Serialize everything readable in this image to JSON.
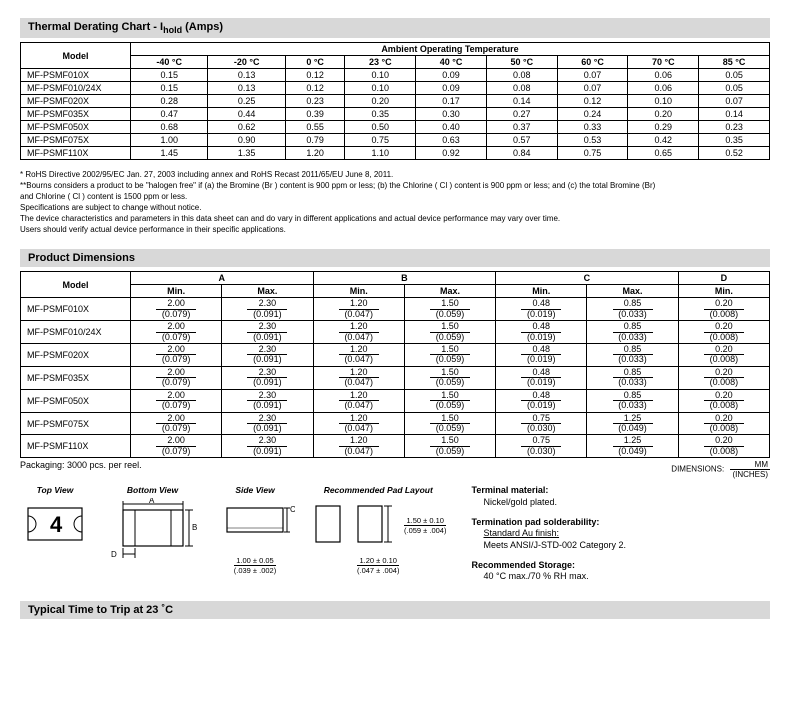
{
  "thermal": {
    "title_prefix": "Thermal Derating Chart - I",
    "title_sub": "hold",
    "title_suffix": " (Amps)",
    "super_header": "Ambient Operating Temperature",
    "model_header": "Model",
    "temps": [
      "-40 °C",
      "-20 °C",
      "0 °C",
      "23 °C",
      "40 °C",
      "50 °C",
      "60 °C",
      "70 °C",
      "85 °C"
    ],
    "rows": [
      {
        "model": "MF-PSMF010X",
        "v": [
          "0.15",
          "0.13",
          "0.12",
          "0.10",
          "0.09",
          "0.08",
          "0.07",
          "0.06",
          "0.05"
        ]
      },
      {
        "model": "MF-PSMF010/24X",
        "v": [
          "0.15",
          "0.13",
          "0.12",
          "0.10",
          "0.09",
          "0.08",
          "0.07",
          "0.06",
          "0.05"
        ]
      },
      {
        "model": "MF-PSMF020X",
        "v": [
          "0.28",
          "0.25",
          "0.23",
          "0.20",
          "0.17",
          "0.14",
          "0.12",
          "0.10",
          "0.07"
        ]
      },
      {
        "model": "MF-PSMF035X",
        "v": [
          "0.47",
          "0.44",
          "0.39",
          "0.35",
          "0.30",
          "0.27",
          "0.24",
          "0.20",
          "0.14"
        ]
      },
      {
        "model": "MF-PSMF050X",
        "v": [
          "0.68",
          "0.62",
          "0.55",
          "0.50",
          "0.40",
          "0.37",
          "0.33",
          "0.29",
          "0.23"
        ]
      },
      {
        "model": "MF-PSMF075X",
        "v": [
          "1.00",
          "0.90",
          "0.79",
          "0.75",
          "0.63",
          "0.57",
          "0.53",
          "0.42",
          "0.35"
        ]
      },
      {
        "model": "MF-PSMF110X",
        "v": [
          "1.45",
          "1.35",
          "1.20",
          "1.10",
          "0.92",
          "0.84",
          "0.75",
          "0.65",
          "0.52"
        ]
      }
    ]
  },
  "footnotes": {
    "l1": "*  RoHS Directive 2002/95/EC Jan. 27, 2003 including annex and RoHS Recast 2011/65/EU June 8, 2011.",
    "l2": "**Bourns considers a product to be \"halogen free\" if (a) the Bromine (Br ) content is 900 ppm or less; (b) the Chlorine ( Cl ) content is 900 ppm or less; and (c) the total Bromine (Br)",
    "l2b": "   and Chlorine ( Cl ) content is 1500 ppm or less.",
    "l3": "Specifications are subject to change without notice.",
    "l4": "The device characteristics and parameters in this data sheet can and do vary in different applications and actual device performance may vary over time.",
    "l5": "Users should verify actual device performance in their specific applications."
  },
  "dims": {
    "title": "Product Dimensions",
    "model_header": "Model",
    "groups": [
      "A",
      "B",
      "C",
      "D"
    ],
    "sub": {
      "min": "Min.",
      "max": "Max."
    },
    "rows": [
      {
        "model": "MF-PSMF010X",
        "a": [
          "2.00",
          "(0.079)",
          "2.30",
          "(0.091)"
        ],
        "b": [
          "1.20",
          "(0.047)",
          "1.50",
          "(0.059)"
        ],
        "c": [
          "0.48",
          "(0.019)",
          "0.85",
          "(0.033)"
        ],
        "d": [
          "0.20",
          "(0.008)"
        ]
      },
      {
        "model": "MF-PSMF010/24X",
        "a": [
          "2.00",
          "(0.079)",
          "2.30",
          "(0.091)"
        ],
        "b": [
          "1.20",
          "(0.047)",
          "1.50",
          "(0.059)"
        ],
        "c": [
          "0.48",
          "(0.019)",
          "0.85",
          "(0.033)"
        ],
        "d": [
          "0.20",
          "(0.008)"
        ]
      },
      {
        "model": "MF-PSMF020X",
        "a": [
          "2.00",
          "(0.079)",
          "2.30",
          "(0.091)"
        ],
        "b": [
          "1.20",
          "(0.047)",
          "1.50",
          "(0.059)"
        ],
        "c": [
          "0.48",
          "(0.019)",
          "0.85",
          "(0.033)"
        ],
        "d": [
          "0.20",
          "(0.008)"
        ]
      },
      {
        "model": "MF-PSMF035X",
        "a": [
          "2.00",
          "(0.079)",
          "2.30",
          "(0.091)"
        ],
        "b": [
          "1.20",
          "(0.047)",
          "1.50",
          "(0.059)"
        ],
        "c": [
          "0.48",
          "(0.019)",
          "0.85",
          "(0.033)"
        ],
        "d": [
          "0.20",
          "(0.008)"
        ]
      },
      {
        "model": "MF-PSMF050X",
        "a": [
          "2.00",
          "(0.079)",
          "2.30",
          "(0.091)"
        ],
        "b": [
          "1.20",
          "(0.047)",
          "1.50",
          "(0.059)"
        ],
        "c": [
          "0.48",
          "(0.019)",
          "0.85",
          "(0.033)"
        ],
        "d": [
          "0.20",
          "(0.008)"
        ]
      },
      {
        "model": "MF-PSMF075X",
        "a": [
          "2.00",
          "(0.079)",
          "2.30",
          "(0.091)"
        ],
        "b": [
          "1.20",
          "(0.047)",
          "1.50",
          "(0.059)"
        ],
        "c": [
          "0.75",
          "(0.030)",
          "1.25",
          "(0.049)"
        ],
        "d": [
          "0.20",
          "(0.008)"
        ]
      },
      {
        "model": "MF-PSMF110X",
        "a": [
          "2.00",
          "(0.079)",
          "2.30",
          "(0.091)"
        ],
        "b": [
          "1.20",
          "(0.047)",
          "1.50",
          "(0.059)"
        ],
        "c": [
          "0.75",
          "(0.030)",
          "1.25",
          "(0.049)"
        ],
        "d": [
          "0.20",
          "(0.008)"
        ]
      }
    ],
    "packaging": "Packaging:  3000 pcs. per reel.",
    "dim_label": "DIMENSIONS:",
    "unit_top": "MM",
    "unit_bot": "(INCHES)"
  },
  "views": {
    "top": "Top View",
    "bottom": "Bottom View",
    "side": "Side View",
    "pad": "Recommended Pad Layout",
    "side_dim_top": "1.00 ± 0.05",
    "side_dim_bot": "(.039 ± .002)",
    "pad_dim1_top": "1.50 ± 0.10",
    "pad_dim1_bot": "(.059 ± .004)",
    "pad_dim2_top": "1.20 ± 0.10",
    "pad_dim2_bot": "(.047 ± .004)",
    "marking": "4"
  },
  "info": {
    "term_mat_lbl": "Terminal material:",
    "term_mat_val": "Nickel/gold plated.",
    "pad_sold_lbl": "Termination pad solderability:",
    "pad_sold_val1": "Standard Au finish:",
    "pad_sold_val2": "Meets ANSI/J-STD-002 Category 2.",
    "storage_lbl": "Recommended Storage:",
    "storage_val": "40 °C max./70 % RH max."
  },
  "trip": {
    "title": "Typical Time to Trip at 23 ˚C"
  }
}
